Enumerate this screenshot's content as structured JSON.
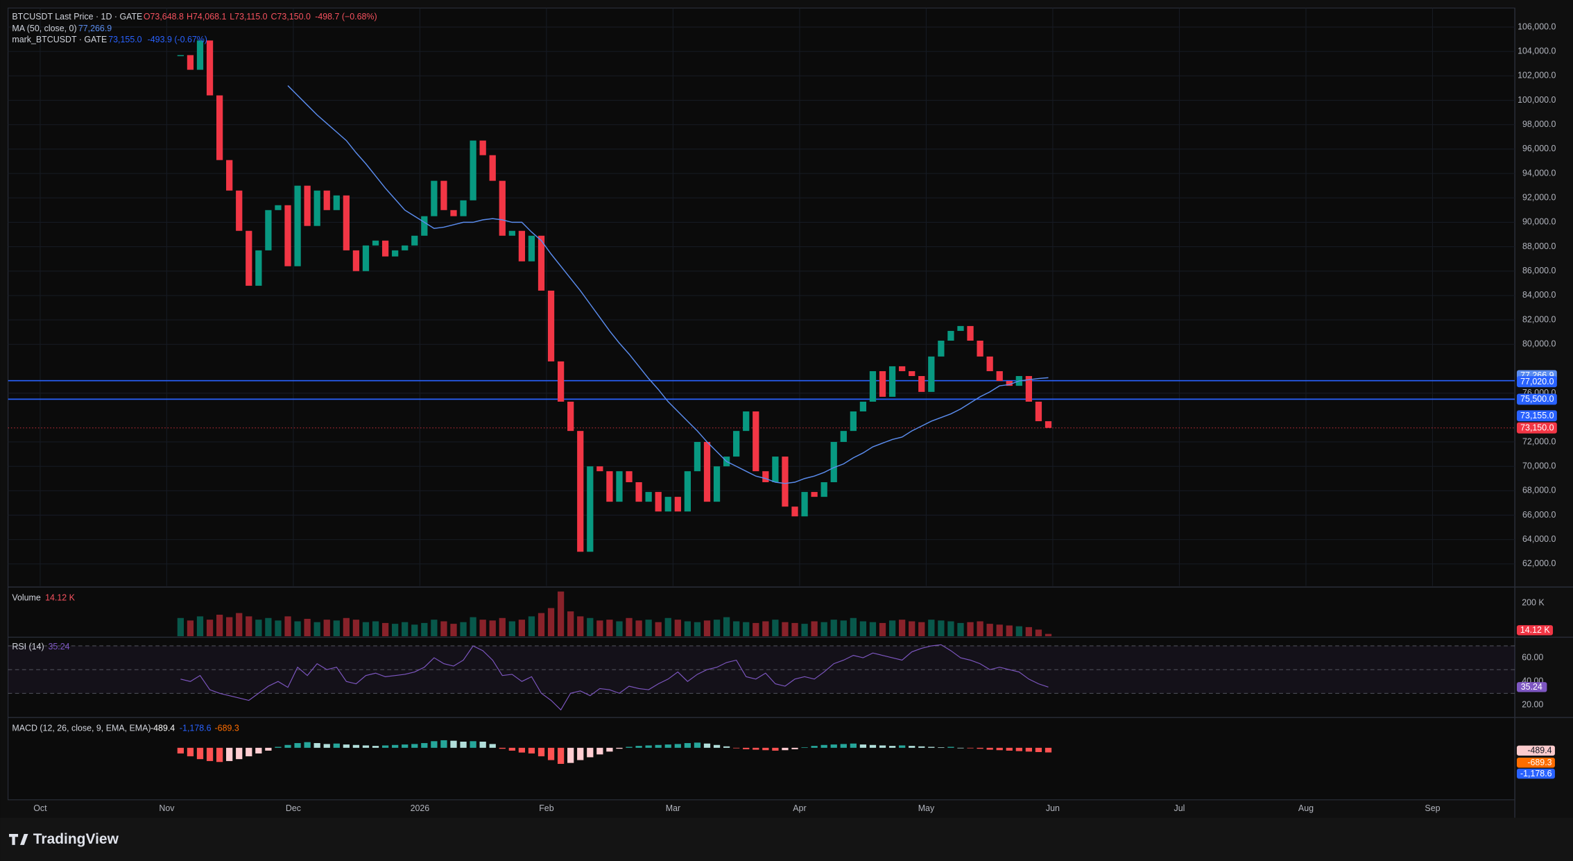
{
  "chart_data": {
    "type": "candlestick",
    "title": "BTCUSDT Last Price · 1D · GATE",
    "ohlc": [
      "O73,648.8",
      "H74,068.1",
      "L73,115.0",
      "C73,150.0",
      "-498.7 (−0.68%)"
    ],
    "up_color": "#089981",
    "down_color": "#f23645",
    "grid": true,
    "values": [
      103700,
      102500,
      104900,
      100400,
      95100,
      92600,
      89300,
      84800,
      87700,
      91000,
      91400,
      86400,
      93000,
      89700,
      92600,
      91000,
      92200,
      87700,
      86000,
      88100,
      88500,
      87200,
      87700,
      88100,
      88900,
      90500,
      93400,
      91000,
      90500,
      91800,
      96700,
      95500,
      93400,
      88900,
      89300,
      86800,
      88900,
      84400,
      78600,
      75300,
      72900,
      63000,
      70000,
      69600,
      67100,
      69600,
      68700,
      67100,
      67900,
      66300,
      67500,
      66300,
      69600,
      72000,
      67100,
      70000,
      70800,
      72900,
      74500,
      69600,
      68700,
      70800,
      66700,
      65900,
      67900,
      67500,
      68700,
      72000,
      72900,
      74500,
      75300,
      77800,
      75700,
      78200,
      77800,
      77400,
      76100,
      79000,
      80300,
      81100,
      81500,
      80300,
      79000,
      77800,
      77000,
      76600,
      77400,
      75300,
      73700,
      73150
    ],
    "last_price": {
      "value": 73150,
      "label": "73,150.0"
    },
    "ma": {
      "name": "MA (50, close, 0)",
      "color": "#5b8def",
      "last": {
        "value": 77266.9,
        "label": "77,266.9"
      },
      "values": [
        null,
        null,
        null,
        null,
        null,
        null,
        null,
        null,
        null,
        null,
        null,
        101200,
        100400,
        99600,
        98800,
        98100,
        97400,
        96700,
        95700,
        94800,
        93800,
        92800,
        91900,
        91000,
        90500,
        90000,
        89500,
        89600,
        89800,
        90000,
        90000,
        90200,
        90300,
        90200,
        90000,
        90000,
        89200,
        88500,
        87400,
        86400,
        85400,
        84400,
        83300,
        82200,
        81100,
        80100,
        79200,
        78200,
        77200,
        76300,
        75300,
        74500,
        73700,
        72900,
        72000,
        71200,
        70400,
        70000,
        69600,
        69200,
        69000,
        68700,
        68600,
        68700,
        69000,
        69200,
        69500,
        69900,
        70200,
        70700,
        71100,
        71600,
        71900,
        72200,
        72400,
        72900,
        73300,
        73700,
        74000,
        74300,
        74700,
        75200,
        75700,
        76100,
        76600,
        76700,
        77000,
        77100,
        77200,
        77266.9
      ]
    },
    "mark_price": {
      "name": "mark_BTCUSDT · GATE",
      "color": "#2962ff",
      "last": {
        "value": 73155,
        "label": "73,155.0"
      },
      "change": "-493.9 (-0.67%)"
    },
    "price_lines": [
      {
        "value": 77020,
        "label": "77,020.0"
      },
      {
        "value": 75500,
        "label": "75,500.0"
      }
    ],
    "ylim": [
      60190,
      107560
    ],
    "yticks": [
      {
        "value": 62000,
        "label": "62,000.0"
      },
      {
        "value": 64000,
        "label": "64,000.0"
      },
      {
        "value": 66000,
        "label": "66,000.0"
      },
      {
        "value": 68000,
        "label": "68,000.0"
      },
      {
        "value": 70000,
        "label": "70,000.0"
      },
      {
        "value": 72000,
        "label": "72,000.0"
      },
      {
        "value": 76000,
        "label": "76,000.0"
      },
      {
        "value": 80000,
        "label": "80,000.0"
      },
      {
        "value": 82000,
        "label": "82,000.0"
      },
      {
        "value": 84000,
        "label": "84,000.0"
      },
      {
        "value": 86000,
        "label": "86,000.0"
      },
      {
        "value": 88000,
        "label": "88,000.0"
      },
      {
        "value": 90000,
        "label": "90,000.0"
      },
      {
        "value": 92000,
        "label": "92,000.0"
      },
      {
        "value": 94000,
        "label": "94,000.0"
      },
      {
        "value": 96000,
        "label": "96,000.0"
      },
      {
        "value": 98000,
        "label": "98,000.0"
      },
      {
        "value": 100000,
        "label": "100,000.0"
      },
      {
        "value": 102000,
        "label": "102,000.0"
      },
      {
        "value": 104000,
        "label": "104,000.0"
      },
      {
        "value": 106000,
        "label": "106,000.0"
      }
    ],
    "months": [
      "Oct",
      "Nov",
      "Dec",
      "2026",
      "Feb",
      "Mar",
      "Apr",
      "May",
      "Jun",
      "Jul",
      "Aug",
      "Sep"
    ],
    "volume": {
      "name": "Volume",
      "last": {
        "value": 14.12,
        "label": "14.12 K"
      },
      "ylim": [
        0,
        291
      ],
      "yticks": [
        {
          "value": 200,
          "label": "200 K"
        }
      ],
      "values": [
        110,
        95,
        120,
        100,
        130,
        115,
        140,
        120,
        100,
        110,
        95,
        120,
        90,
        105,
        85,
        100,
        95,
        110,
        100,
        85,
        90,
        80,
        75,
        85,
        70,
        80,
        100,
        90,
        75,
        85,
        115,
        100,
        95,
        110,
        90,
        100,
        120,
        140,
        170,
        270,
        150,
        120,
        110,
        95,
        100,
        90,
        110,
        95,
        100,
        85,
        110,
        100,
        90,
        85,
        95,
        100,
        115,
        90,
        85,
        80,
        90,
        100,
        85,
        80,
        75,
        90,
        85,
        100,
        95,
        110,
        90,
        85,
        80,
        95,
        100,
        90,
        85,
        100,
        95,
        90,
        80,
        85,
        90,
        75,
        70,
        65,
        60,
        55,
        40,
        14.12
      ]
    },
    "rsi": {
      "name": "RSI (14)",
      "color": "#7e57c2",
      "last": {
        "value": 35.24,
        "label": "35.24"
      },
      "ylim": [
        10.4,
        76.5
      ],
      "bands": [
        70,
        50,
        30
      ],
      "yticks": [
        {
          "value": 60,
          "label": "60.00"
        },
        {
          "value": 40,
          "label": "40.00"
        },
        {
          "value": 20,
          "label": "20.00"
        }
      ],
      "values": [
        42,
        40,
        45,
        33,
        30,
        28,
        26,
        24,
        30,
        36,
        40,
        35,
        52,
        45,
        55,
        50,
        52,
        40,
        38,
        45,
        47,
        44,
        45,
        46,
        48,
        52,
        60,
        55,
        53,
        58,
        70,
        66,
        58,
        45,
        46,
        40,
        44,
        30,
        24,
        16,
        30,
        32,
        28,
        34,
        33,
        30,
        36,
        34,
        33,
        38,
        42,
        48,
        40,
        46,
        50,
        52,
        56,
        58,
        44,
        42,
        47,
        38,
        36,
        42,
        44,
        42,
        48,
        55,
        58,
        62,
        60,
        64,
        62,
        60,
        58,
        65,
        68,
        70,
        71,
        66,
        60,
        58,
        55,
        50,
        52,
        50,
        48,
        42,
        38,
        35.24
      ]
    },
    "macd": {
      "name": "MACD (12, 26, close, 9, EMA, EMA)",
      "histogram_last": {
        "value": -489.4,
        "label": "-489.4"
      },
      "macd_last": {
        "value": -1178.6,
        "label": "-1,178.6"
      },
      "signal_last": {
        "value": -689.3,
        "label": "-689.3"
      },
      "ylim": [
        -5500,
        3100
      ],
      "histogram": [
        -600,
        -900,
        -1200,
        -1400,
        -1500,
        -1400,
        -1200,
        -900,
        -600,
        -300,
        100,
        300,
        500,
        600,
        500,
        400,
        450,
        350,
        300,
        250,
        200,
        250,
        300,
        350,
        400,
        500,
        700,
        800,
        750,
        650,
        700,
        650,
        400,
        -100,
        -300,
        -500,
        -600,
        -900,
        -1300,
        -1700,
        -1600,
        -1300,
        -1000,
        -700,
        -400,
        -100,
        100,
        200,
        250,
        300,
        350,
        400,
        500,
        550,
        450,
        300,
        150,
        -50,
        -150,
        -200,
        -250,
        -300,
        -250,
        -150,
        50,
        200,
        300,
        350,
        400,
        450,
        350,
        300,
        250,
        200,
        250,
        200,
        150,
        100,
        50,
        100,
        0,
        -50,
        -100,
        -200,
        -250,
        -300,
        -350,
        -400,
        -450,
        -489.4
      ]
    },
    "brand": "TradingView"
  }
}
